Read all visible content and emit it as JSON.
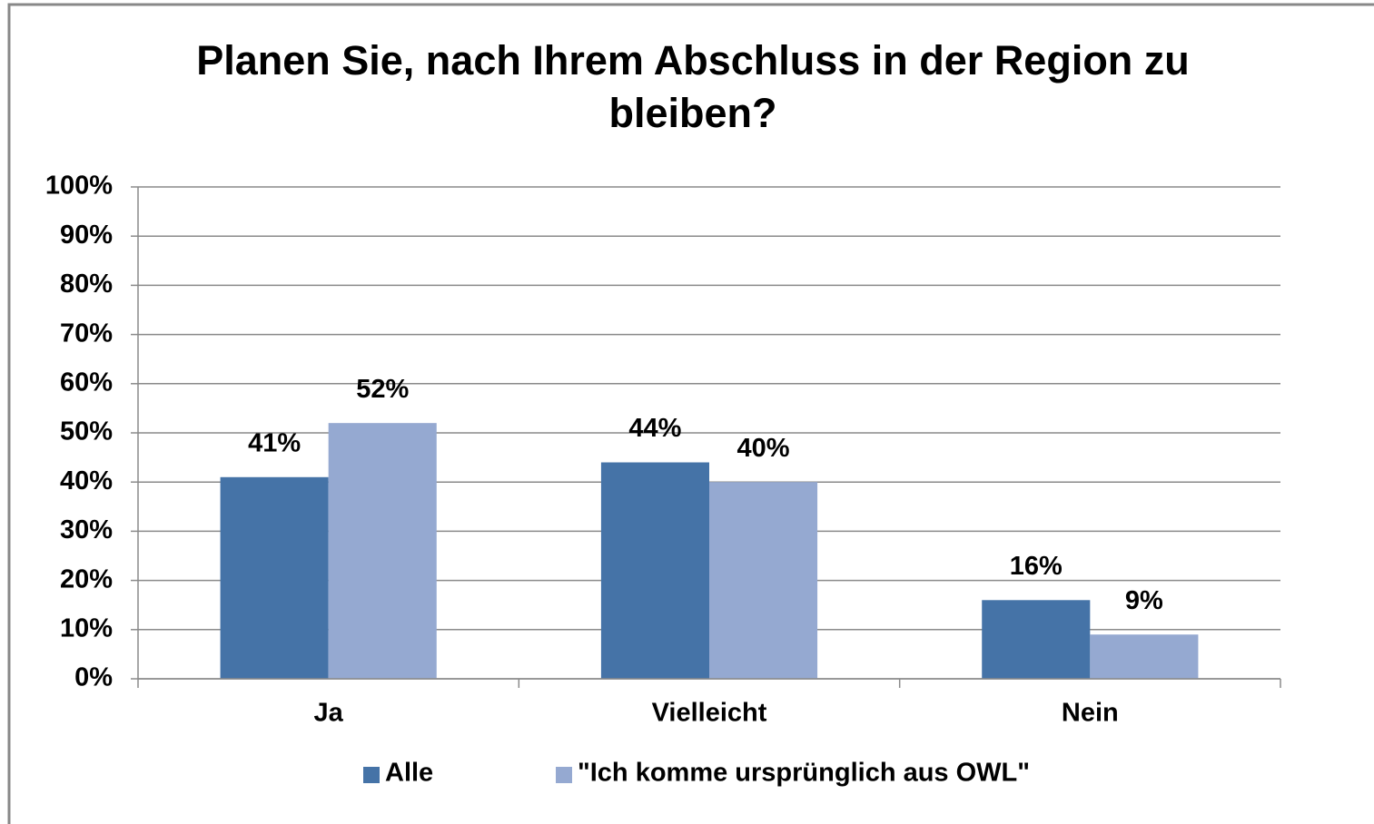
{
  "chart_data": {
    "type": "bar",
    "title": "Planen Sie, nach Ihrem Abschluss in der Region zu bleiben?",
    "categories": [
      "Ja",
      "Vielleicht",
      "Nein"
    ],
    "series": [
      {
        "name": "Alle",
        "color": "#4573a7",
        "values": [
          41,
          44,
          16
        ],
        "value_labels": [
          "41%",
          "44%",
          "16%"
        ]
      },
      {
        "name": "\"Ich komme ursprünglich aus OWL\"",
        "color": "#95a9d1",
        "values": [
          52,
          40,
          9
        ],
        "value_labels": [
          "52%",
          "40%",
          "9%"
        ]
      }
    ],
    "ylim": [
      0,
      100
    ],
    "yticks": [
      {
        "value": 0,
        "label": "0%"
      },
      {
        "value": 10,
        "label": "10%"
      },
      {
        "value": 20,
        "label": "20%"
      },
      {
        "value": 30,
        "label": "30%"
      },
      {
        "value": 40,
        "label": "40%"
      },
      {
        "value": 50,
        "label": "50%"
      },
      {
        "value": 60,
        "label": "60%"
      },
      {
        "value": 70,
        "label": "70%"
      },
      {
        "value": 80,
        "label": "80%"
      },
      {
        "value": 90,
        "label": "90%"
      },
      {
        "value": 100,
        "label": "100%"
      }
    ],
    "grid": true,
    "legend": "bottom"
  }
}
